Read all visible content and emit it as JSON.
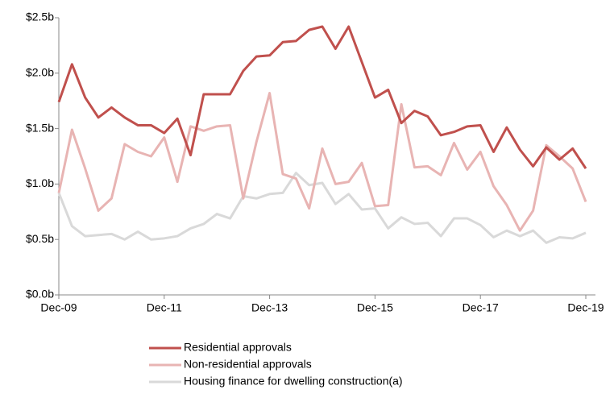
{
  "chart_data": {
    "type": "line",
    "categories": [
      "Dec-09",
      null,
      null,
      null,
      null,
      null,
      null,
      null,
      "Dec-11",
      null,
      null,
      null,
      null,
      null,
      null,
      null,
      "Dec-13",
      null,
      null,
      null,
      null,
      null,
      null,
      null,
      "Dec-15",
      null,
      null,
      null,
      null,
      null,
      null,
      null,
      "Dec-17",
      null,
      null,
      null,
      null,
      null,
      null,
      null,
      "Dec-19"
    ],
    "series": [
      {
        "name": "Residential approvals",
        "color": "#c0504d",
        "values": [
          1.74,
          2.08,
          1.78,
          1.6,
          1.69,
          1.6,
          1.53,
          1.53,
          1.46,
          1.59,
          1.26,
          1.81,
          1.81,
          1.81,
          2.02,
          2.15,
          2.16,
          2.28,
          2.29,
          2.39,
          2.42,
          2.22,
          2.42,
          2.1,
          1.78,
          1.85,
          1.55,
          1.66,
          1.61,
          1.44,
          1.47,
          1.52,
          1.53,
          1.29,
          1.51,
          1.31,
          1.16,
          1.33,
          1.22,
          1.32,
          1.14
        ]
      },
      {
        "name": "Non-residential approvals",
        "color": "#e8b4b3",
        "values": [
          0.92,
          1.49,
          1.14,
          0.76,
          0.87,
          1.36,
          1.29,
          1.25,
          1.42,
          1.02,
          1.52,
          1.48,
          1.52,
          1.53,
          0.87,
          1.38,
          1.82,
          1.09,
          1.05,
          0.78,
          1.32,
          1.0,
          1.02,
          1.19,
          0.8,
          0.81,
          1.72,
          1.15,
          1.16,
          1.08,
          1.37,
          1.13,
          1.29,
          0.98,
          0.81,
          0.58,
          0.76,
          1.35,
          1.25,
          1.14,
          0.84
        ]
      },
      {
        "name": "Housing finance for dwelling construction(a)",
        "color": "#d9d9d9",
        "values": [
          0.92,
          0.62,
          0.53,
          0.54,
          0.55,
          0.5,
          0.57,
          0.5,
          0.51,
          0.53,
          0.6,
          0.64,
          0.73,
          0.69,
          0.89,
          0.87,
          0.91,
          0.92,
          1.1,
          0.99,
          1.01,
          0.82,
          0.91,
          0.77,
          0.78,
          0.6,
          0.7,
          0.64,
          0.65,
          0.53,
          0.69,
          0.69,
          0.63,
          0.52,
          0.58,
          0.53,
          0.58,
          0.47,
          0.52,
          0.51,
          0.56
        ]
      }
    ],
    "ylim": [
      0,
      2.5
    ],
    "yticks": [
      {
        "value": 0,
        "label": "$0.0b"
      },
      {
        "value": 0.5,
        "label": "$0.5b"
      },
      {
        "value": 1,
        "label": "$1.0b"
      },
      {
        "value": 1.5,
        "label": "$1.5b"
      },
      {
        "value": 2,
        "label": "$2.0b"
      },
      {
        "value": 2.5,
        "label": "$2.5b"
      }
    ]
  }
}
